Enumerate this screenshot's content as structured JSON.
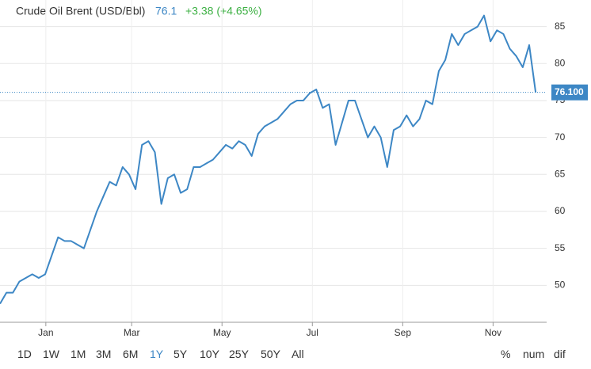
{
  "chart_data": {
    "type": "line",
    "title": "Crude Oil Brent (USD/Bbl)",
    "last": 76.1,
    "change": "+3.38 (+4.65%)",
    "values": [
      47.5,
      49,
      49,
      50.5,
      51,
      51.5,
      51,
      51.5,
      54,
      56.5,
      56,
      56,
      55.5,
      55,
      57.5,
      60,
      62,
      64,
      63.5,
      66,
      65,
      63,
      69,
      69.5,
      68,
      61,
      64.5,
      65,
      62.5,
      63,
      66,
      66,
      66.5,
      67,
      68,
      69,
      68.5,
      69.5,
      69,
      67.5,
      70.5,
      71.5,
      72,
      72.5,
      73.5,
      74.5,
      75,
      75,
      76,
      76.5,
      74,
      74.5,
      69,
      72,
      75,
      75,
      72.5,
      70,
      71.5,
      70,
      66,
      71,
      71.5,
      73,
      71.5,
      72.5,
      75,
      74.5,
      79,
      80.5,
      84,
      82.5,
      84,
      84.5,
      85,
      86.5,
      83,
      84.5,
      84,
      82,
      81,
      79.5,
      82.5,
      76.1
    ],
    "value_labels": [
      null,
      null,
      null,
      null,
      null,
      null,
      null,
      null,
      null,
      null,
      null,
      null,
      null,
      null,
      null,
      null,
      null,
      null,
      null,
      null,
      null,
      null,
      null,
      null,
      null,
      null,
      null,
      null,
      null,
      null,
      null,
      null,
      null,
      null,
      null,
      null,
      null,
      null,
      null,
      null,
      null,
      null,
      null,
      null,
      null,
      null,
      null,
      null,
      null,
      null,
      null,
      null,
      null,
      null,
      null,
      null,
      null,
      null,
      null,
      null,
      null,
      null,
      null,
      null,
      null,
      null,
      null,
      null,
      null,
      null,
      null,
      null,
      null,
      null,
      null,
      null,
      null,
      null,
      null,
      null,
      null,
      null,
      null,
      "76.100"
    ],
    "color": "#3d87c5",
    "xlim": [
      0,
      84.7
    ],
    "xticks": [
      {
        "value": 7.1,
        "label": "Jan"
      },
      {
        "value": 20.4,
        "label": "Mar"
      },
      {
        "value": 34.4,
        "label": "May"
      },
      {
        "value": 48.4,
        "label": "Jul"
      },
      {
        "value": 62.4,
        "label": "Sep"
      },
      {
        "value": 76.4,
        "label": "Nov"
      }
    ],
    "ylim": [
      45,
      88.6
    ],
    "yticks": [
      50,
      55,
      60,
      65,
      70,
      75,
      80,
      85
    ],
    "grid": true
  },
  "controls": {
    "ranges": [
      "1D",
      "1W",
      "1M",
      "3M",
      "6M",
      "1Y",
      "5Y",
      "10Y",
      "25Y",
      "50Y",
      "All"
    ],
    "selected": "1Y",
    "modes": [
      "%",
      "num",
      "dif"
    ]
  }
}
